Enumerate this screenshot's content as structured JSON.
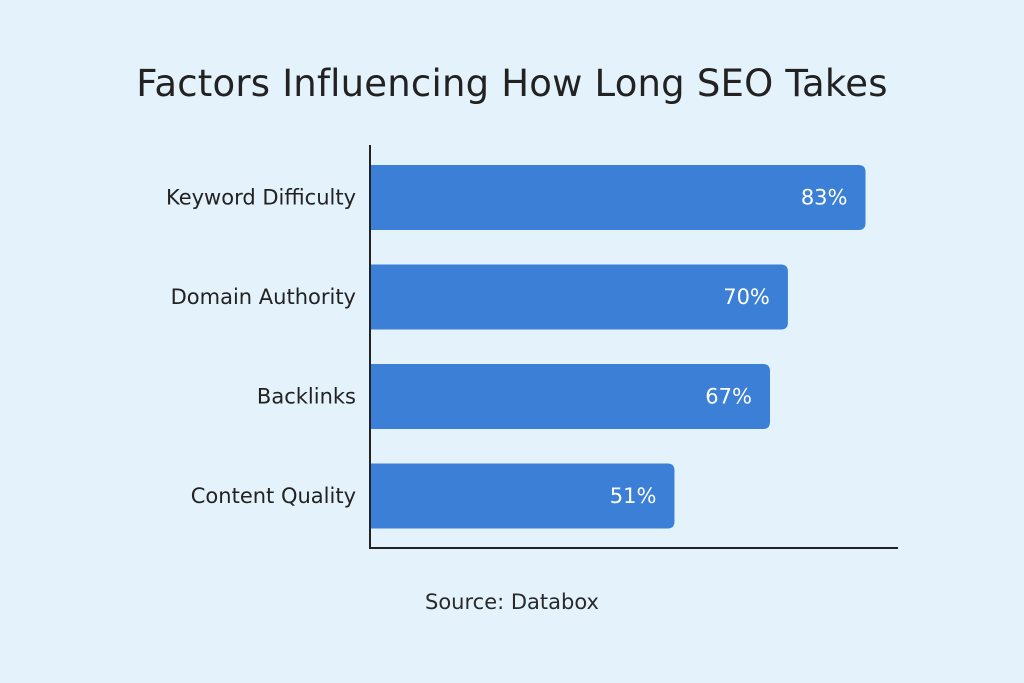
{
  "chart_data": {
    "type": "bar",
    "orientation": "horizontal",
    "title": "Factors Influencing How Long SEO Takes",
    "categories": [
      "Keyword Difficulty",
      "Domain Authority",
      "Backlinks",
      "Content Quality"
    ],
    "values": [
      83,
      70,
      67,
      51
    ],
    "data_labels": [
      "83%",
      "70%",
      "67%",
      "51%"
    ],
    "unit": "%",
    "xlim": [
      0,
      100
    ],
    "grid": false,
    "legend": "none",
    "bar_color": "#3b7fd6",
    "axis_color": "#222222",
    "label_color": "#ffffff"
  },
  "footer": {
    "source": "Source: Databox"
  }
}
